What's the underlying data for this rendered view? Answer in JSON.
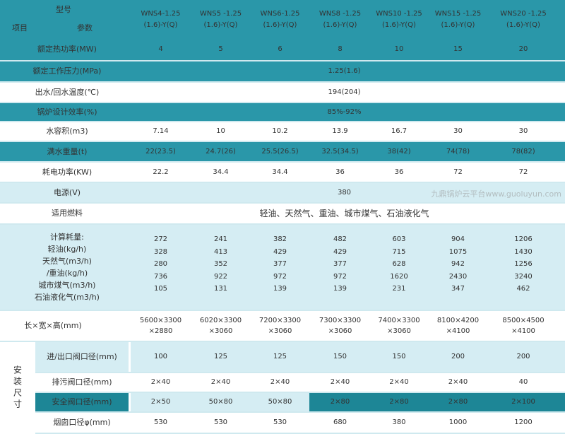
{
  "header": {
    "model_label": "型号",
    "item_label": "项目",
    "param_label": "参数",
    "models": [
      "WNS4-1.25\n(1.6)-Y(Q)",
      "WNS5 -1.25\n(1.6)-Y(Q)",
      "WNS6-1.25\n(1.6)-Y(Q)",
      "WNS8 -1.25\n(1.6)-Y(Q)",
      "WNS10 -1.25\n(1.6)-Y(Q)",
      "WNS15 -1.25\n(1.6)-Y(Q)",
      "WNS20 -1.25\n(1.6)-Y(Q)"
    ]
  },
  "colors": {
    "teal": "#2a97a9",
    "dark_teal": "#1d8696",
    "light": "#d5edf3",
    "white": "#ffffff"
  },
  "rows": [
    {
      "label": "额定热功率(MW)",
      "values": [
        "4",
        "5",
        "6",
        "8",
        "10",
        "15",
        "20"
      ]
    },
    {
      "label": "额定工作压力(MPa)",
      "span": "1.25(1.6)"
    },
    {
      "label": "出水/回水温度(℃)",
      "span": "194(204)"
    },
    {
      "label": "锅炉设计效率(%)",
      "span": "85%-92%"
    },
    {
      "label": "水容积(m3)",
      "values": [
        "7.14",
        "10",
        "10.2",
        "13.9",
        "16.7",
        "30",
        "30"
      ]
    },
    {
      "label": "满水重量(t)",
      "values": [
        "22(23.5)",
        "24.7(26)",
        "25.5(26.5)",
        "32.5(34.5)",
        "38(42)",
        "74(78)",
        "78(82)"
      ]
    },
    {
      "label": "耗电功率(KW)",
      "values": [
        "22.2",
        "34.4",
        "34.4",
        "36",
        "36",
        "72",
        "72"
      ]
    },
    {
      "label": "电源(V)",
      "span": "380"
    },
    {
      "label": "适用燃料",
      "span": "轻油、天然气、重油、城市煤气、石油液化气"
    },
    {
      "label": "计算耗量:\n轻油(kg/h)\n天然气(m3/h)\n/重油(kg/h)\n城市煤气(m3/h)\n石油液化气(m3/h)",
      "values": [
        "272\n328\n280\n736\n105",
        "241\n413\n352\n922\n131",
        "382\n429\n377\n972\n139",
        "482\n429\n377\n972\n139",
        "603\n715\n628\n1620\n231",
        "904\n1075\n942\n2430\n347",
        "1206\n1430\n1256\n3240\n462"
      ]
    },
    {
      "label": "长×宽×高(mm)",
      "values": [
        "5600×3300\n×2880",
        "6020×3300\n×3060",
        "7200×3300\n×3060",
        "7300×3300\n×3060",
        "7400×3300\n×3060",
        "8100×4200\n×4100",
        "8500×4500\n×4100"
      ]
    },
    {
      "label": "进/出口阀口径(mm)",
      "values": [
        "100",
        "125",
        "125",
        "150",
        "150",
        "200",
        "200"
      ]
    },
    {
      "label": "排污阀口径(mm)",
      "values": [
        "2×40",
        "2×40",
        "2×40",
        "2×40",
        "2×40",
        "2×40",
        "40"
      ]
    },
    {
      "label": "安全阀口径(mm)",
      "values": [
        "2×50",
        "50×80",
        "50×80",
        "2×80",
        "2×80",
        "2×80",
        "2×100"
      ]
    },
    {
      "label": "烟囱口径φ(mm)",
      "values": [
        "530",
        "530",
        "530",
        "680",
        "380",
        "1000",
        "1200"
      ]
    }
  ],
  "install_group_label": "安装尺寸",
  "watermark": "九鼎锅炉云平台www.guoluyun.com"
}
